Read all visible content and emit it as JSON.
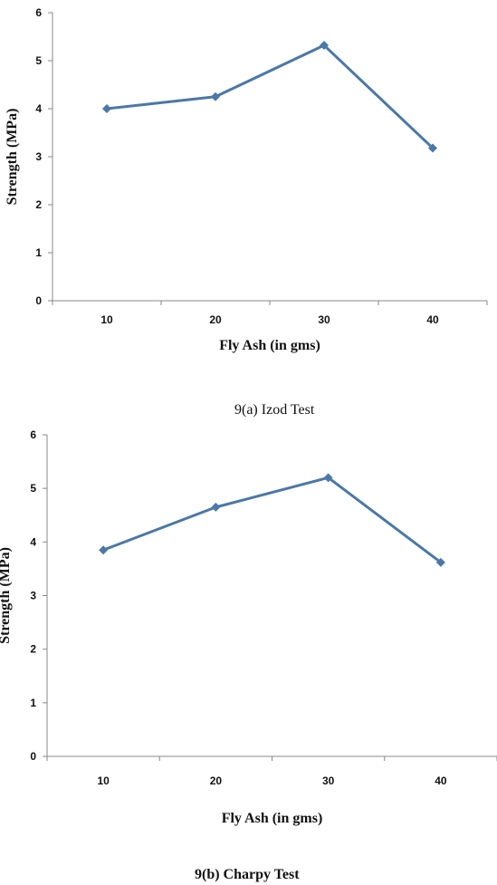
{
  "chart_data": [
    {
      "type": "line",
      "categories": [
        "10",
        "20",
        "30",
        "40"
      ],
      "series": [
        {
          "values": [
            4.0,
            4.25,
            5.32,
            3.18
          ],
          "color": "#4a78a8",
          "marker": "diamond"
        }
      ],
      "xlabel": "Fly Ash (in gms)",
      "ylabel": "Strength (MPa)",
      "ylim": [
        0,
        6
      ],
      "yticks": [
        "0",
        "1",
        "2",
        "3",
        "4",
        "5",
        "6"
      ],
      "grid": false,
      "caption": "9(a) Izod Test"
    },
    {
      "type": "line",
      "categories": [
        "10",
        "20",
        "30",
        "40"
      ],
      "series": [
        {
          "values": [
            3.85,
            4.65,
            5.2,
            3.62
          ],
          "color": "#4a78a8",
          "marker": "diamond"
        }
      ],
      "xlabel": "Fly Ash (in gms)",
      "ylabel": "Strength (MPa)",
      "ylim": [
        0,
        6
      ],
      "yticks": [
        "0",
        "1",
        "2",
        "3",
        "4",
        "5",
        "6"
      ],
      "grid": false,
      "caption": "9(b) Charpy Test"
    }
  ]
}
